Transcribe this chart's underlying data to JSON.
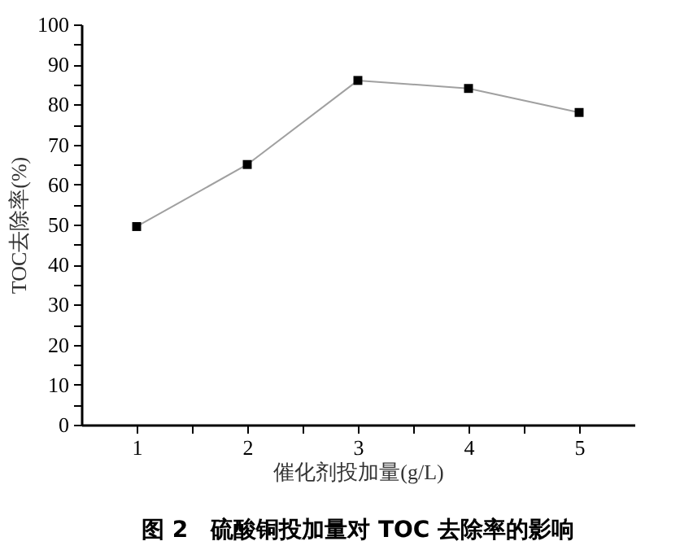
{
  "chart_data": {
    "type": "line",
    "title": "图 2　硫酸铜投加量对 TOC 去除率的影响",
    "xlabel": "催化剂投加量(g/L)",
    "ylabel": "TOC去除率(%)",
    "x": [
      1,
      2,
      3,
      4,
      5
    ],
    "series": [
      {
        "color": "#a0a0a0",
        "values": [
          49.5,
          65,
          86,
          84,
          78
        ]
      }
    ],
    "marker": "square",
    "line_style": "solid",
    "grid": false,
    "xlim": [
      0.5,
      5.5
    ],
    "xticks": [
      1,
      {
        "value": 1.5,
        "label": null
      },
      2,
      {
        "value": 2.5,
        "label": null
      },
      3,
      {
        "value": 3.5,
        "label": null
      },
      4,
      {
        "value": 4.5,
        "label": null
      },
      5
    ],
    "ylim": [
      0,
      100
    ],
    "yticks": [
      0,
      {
        "value": 5,
        "label": null
      },
      10,
      {
        "value": 15,
        "label": null
      },
      20,
      {
        "value": 25,
        "label": null
      },
      30,
      {
        "value": 35,
        "label": null
      },
      40,
      {
        "value": 45,
        "label": null
      },
      50,
      {
        "value": 55,
        "label": null
      },
      60,
      {
        "value": 65,
        "label": null
      },
      70,
      {
        "value": 75,
        "label": null
      },
      80,
      {
        "value": 85,
        "label": null
      },
      90,
      {
        "value": 95,
        "label": null
      },
      100
    ]
  }
}
